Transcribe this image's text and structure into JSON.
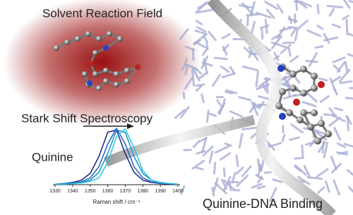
{
  "panel_left": {
    "title": "Solvent Reaction Field",
    "method": "Stark Shift Spectroscopy",
    "molecule": "Quinine"
  },
  "panel_right": {
    "caption": "Quinine-DNA Binding"
  },
  "chart_data": {
    "type": "line",
    "x": [
      1330,
      1335,
      1340,
      1345,
      1350,
      1355,
      1360,
      1365,
      1370,
      1375,
      1380,
      1385,
      1390,
      1395,
      1400
    ],
    "series": [
      {
        "color": "#1a237e",
        "values": [
          0.01,
          0.02,
          0.04,
          0.08,
          0.2,
          0.5,
          0.93,
          0.97,
          0.55,
          0.22,
          0.08,
          0.04,
          0.02,
          0.01,
          0.01
        ]
      },
      {
        "color": "#1f5fbf",
        "values": [
          0.01,
          0.02,
          0.03,
          0.05,
          0.12,
          0.32,
          0.72,
          1.0,
          0.72,
          0.32,
          0.12,
          0.05,
          0.03,
          0.02,
          0.01
        ]
      },
      {
        "color": "#1e90d0",
        "values": [
          0.01,
          0.01,
          0.02,
          0.04,
          0.08,
          0.22,
          0.55,
          0.97,
          0.93,
          0.5,
          0.2,
          0.08,
          0.04,
          0.02,
          0.01
        ]
      },
      {
        "color": "#22c8e0",
        "values": [
          0.01,
          0.01,
          0.02,
          0.03,
          0.06,
          0.12,
          0.4,
          0.85,
          0.99,
          0.65,
          0.25,
          0.08,
          0.03,
          0.02,
          0.01
        ]
      }
    ],
    "xlim": [
      1330,
      1400
    ],
    "xticks": [
      1330,
      1340,
      1350,
      1360,
      1370,
      1380,
      1390,
      1400
    ],
    "ylim": [
      0,
      1.05
    ],
    "xlabel": "Raman shift / cm⁻¹"
  }
}
